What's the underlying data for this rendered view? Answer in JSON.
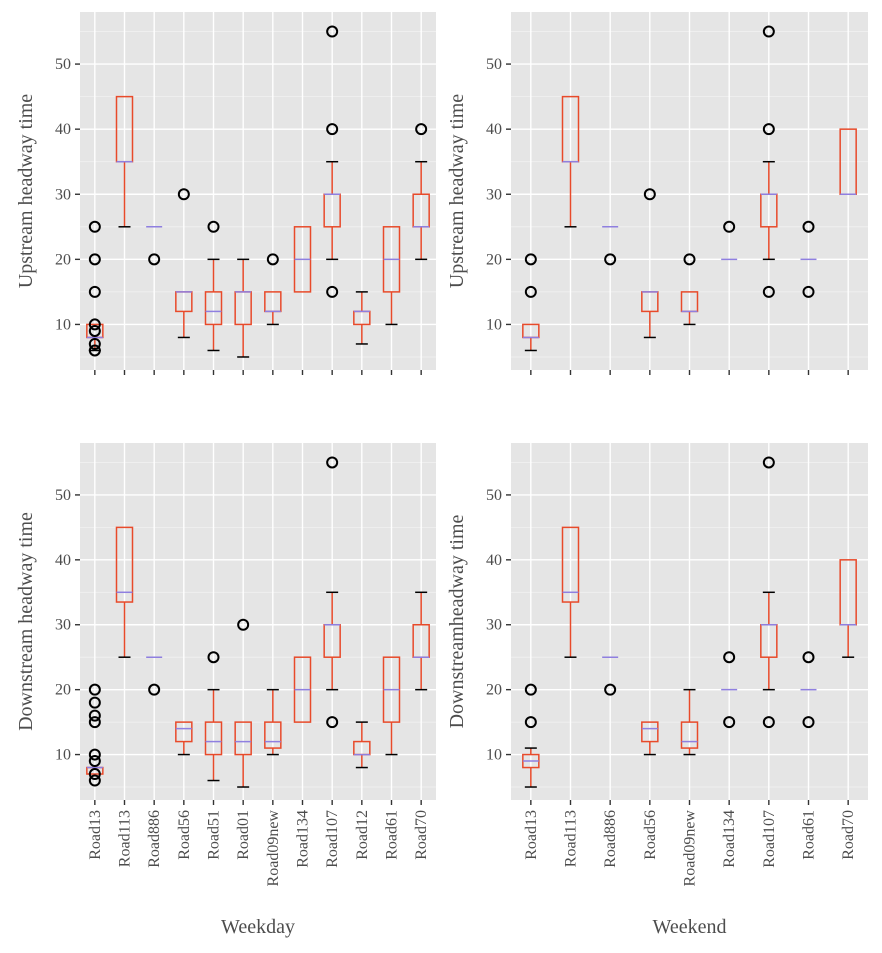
{
  "chart_data": [
    {
      "type": "boxplot",
      "panel": "top-left",
      "ylabel": "Upstream headway time",
      "xlabel": "",
      "yticks": [
        10,
        20,
        30,
        40,
        50
      ],
      "ylim": [
        3,
        58
      ],
      "categories": [
        "Road13",
        "Road113",
        "Road886",
        "Road56",
        "Road51",
        "Road01",
        "Road09new",
        "Road134",
        "Road107",
        "Road12",
        "Road61",
        "Road70"
      ],
      "show_category_labels": false,
      "boxes": [
        {
          "q1": 8,
          "median": 8,
          "q3": 10,
          "whislo": 6,
          "whishi": 10,
          "fliers": [
            6,
            7,
            9,
            10,
            15,
            20,
            25
          ]
        },
        {
          "q1": 35,
          "median": 35,
          "q3": 45,
          "whislo": 25,
          "whishi": 45,
          "fliers": []
        },
        {
          "q1": 25,
          "median": 25,
          "q3": 25,
          "whislo": 25,
          "whishi": 25,
          "fliers": [
            20
          ]
        },
        {
          "q1": 12,
          "median": 15,
          "q3": 15,
          "whislo": 8,
          "whishi": 15,
          "fliers": [
            30
          ]
        },
        {
          "q1": 10,
          "median": 12,
          "q3": 15,
          "whislo": 6,
          "whishi": 20,
          "fliers": [
            25
          ]
        },
        {
          "q1": 10,
          "median": 15,
          "q3": 15,
          "whislo": 5,
          "whishi": 20,
          "fliers": []
        },
        {
          "q1": 12,
          "median": 12,
          "q3": 15,
          "whislo": 10,
          "whishi": 15,
          "fliers": [
            20
          ]
        },
        {
          "q1": 15,
          "median": 20,
          "q3": 25,
          "whislo": 15,
          "whishi": 25,
          "fliers": []
        },
        {
          "q1": 25,
          "median": 30,
          "q3": 30,
          "whislo": 20,
          "whishi": 35,
          "fliers": [
            15,
            40,
            55
          ]
        },
        {
          "q1": 10,
          "median": 12,
          "q3": 12,
          "whislo": 7,
          "whishi": 15,
          "fliers": []
        },
        {
          "q1": 15,
          "median": 20,
          "q3": 25,
          "whislo": 10,
          "whishi": 25,
          "fliers": []
        },
        {
          "q1": 25,
          "median": 25,
          "q3": 30,
          "whislo": 20,
          "whishi": 35,
          "fliers": [
            40
          ]
        }
      ]
    },
    {
      "type": "boxplot",
      "panel": "top-right",
      "ylabel": "Upstream headway time",
      "xlabel": "",
      "yticks": [
        10,
        20,
        30,
        40,
        50
      ],
      "ylim": [
        3,
        58
      ],
      "categories": [
        "Road13",
        "Road113",
        "Road886",
        "Road56",
        "Road09new",
        "Road134",
        "Road107",
        "Road61",
        "Road70"
      ],
      "show_category_labels": false,
      "boxes": [
        {
          "q1": 8,
          "median": 8,
          "q3": 10,
          "whislo": 6,
          "whishi": 10,
          "fliers": [
            15,
            20
          ]
        },
        {
          "q1": 35,
          "median": 35,
          "q3": 45,
          "whislo": 25,
          "whishi": 45,
          "fliers": []
        },
        {
          "q1": 25,
          "median": 25,
          "q3": 25,
          "whislo": 25,
          "whishi": 25,
          "fliers": [
            20
          ]
        },
        {
          "q1": 12,
          "median": 15,
          "q3": 15,
          "whislo": 8,
          "whishi": 15,
          "fliers": [
            30
          ]
        },
        {
          "q1": 12,
          "median": 12,
          "q3": 15,
          "whislo": 10,
          "whishi": 15,
          "fliers": [
            20
          ]
        },
        {
          "q1": 20,
          "median": 20,
          "q3": 20,
          "whislo": 20,
          "whishi": 20,
          "fliers": [
            25
          ]
        },
        {
          "q1": 25,
          "median": 30,
          "q3": 30,
          "whislo": 20,
          "whishi": 35,
          "fliers": [
            15,
            40,
            55
          ]
        },
        {
          "q1": 20,
          "median": 20,
          "q3": 20,
          "whislo": 20,
          "whishi": 20,
          "fliers": [
            15,
            25
          ]
        },
        {
          "q1": 30,
          "median": 30,
          "q3": 40,
          "whislo": 30,
          "whishi": 40,
          "fliers": []
        }
      ]
    },
    {
      "type": "boxplot",
      "panel": "bottom-left",
      "ylabel": "Downstream headway time",
      "xlabel": "Weekday",
      "yticks": [
        10,
        20,
        30,
        40,
        50
      ],
      "ylim": [
        3,
        58
      ],
      "categories": [
        "Road13",
        "Road113",
        "Road886",
        "Road56",
        "Road51",
        "Road01",
        "Road09new",
        "Road134",
        "Road107",
        "Road12",
        "Road61",
        "Road70"
      ],
      "show_category_labels": true,
      "boxes": [
        {
          "q1": 7,
          "median": 8,
          "q3": 8,
          "whislo": 7,
          "whishi": 8,
          "fliers": [
            6,
            7,
            9,
            10,
            15,
            16,
            18,
            20
          ]
        },
        {
          "q1": 33.5,
          "median": 35,
          "q3": 45,
          "whislo": 25,
          "whishi": 45,
          "fliers": []
        },
        {
          "q1": 25,
          "median": 25,
          "q3": 25,
          "whislo": 25,
          "whishi": 25,
          "fliers": [
            20
          ]
        },
        {
          "q1": 12,
          "median": 14,
          "q3": 15,
          "whislo": 10,
          "whishi": 15,
          "fliers": []
        },
        {
          "q1": 10,
          "median": 12,
          "q3": 15,
          "whislo": 6,
          "whishi": 20,
          "fliers": [
            25
          ]
        },
        {
          "q1": 10,
          "median": 12,
          "q3": 15,
          "whislo": 5,
          "whishi": 15,
          "fliers": [
            30
          ]
        },
        {
          "q1": 11,
          "median": 12,
          "q3": 15,
          "whislo": 10,
          "whishi": 20,
          "fliers": []
        },
        {
          "q1": 15,
          "median": 20,
          "q3": 25,
          "whislo": 15,
          "whishi": 25,
          "fliers": []
        },
        {
          "q1": 25,
          "median": 30,
          "q3": 30,
          "whislo": 20,
          "whishi": 35,
          "fliers": [
            15,
            55
          ]
        },
        {
          "q1": 10,
          "median": 10,
          "q3": 12,
          "whislo": 8,
          "whishi": 15,
          "fliers": []
        },
        {
          "q1": 15,
          "median": 20,
          "q3": 25,
          "whislo": 10,
          "whishi": 25,
          "fliers": []
        },
        {
          "q1": 25,
          "median": 25,
          "q3": 30,
          "whislo": 20,
          "whishi": 35,
          "fliers": []
        }
      ]
    },
    {
      "type": "boxplot",
      "panel": "bottom-right",
      "ylabel": "Downstreamheadway time",
      "xlabel": "Weekend",
      "yticks": [
        10,
        20,
        30,
        40,
        50
      ],
      "ylim": [
        3,
        58
      ],
      "categories": [
        "Road13",
        "Road113",
        "Road886",
        "Road56",
        "Road09new",
        "Road134",
        "Road107",
        "Road61",
        "Road70"
      ],
      "show_category_labels": true,
      "boxes": [
        {
          "q1": 8,
          "median": 9,
          "q3": 10,
          "whislo": 5,
          "whishi": 11,
          "fliers": [
            15,
            20
          ]
        },
        {
          "q1": 33.5,
          "median": 35,
          "q3": 45,
          "whislo": 25,
          "whishi": 45,
          "fliers": []
        },
        {
          "q1": 25,
          "median": 25,
          "q3": 25,
          "whislo": 25,
          "whishi": 25,
          "fliers": [
            20
          ]
        },
        {
          "q1": 12,
          "median": 14,
          "q3": 15,
          "whislo": 10,
          "whishi": 15,
          "fliers": []
        },
        {
          "q1": 11,
          "median": 12,
          "q3": 15,
          "whislo": 10,
          "whishi": 20,
          "fliers": []
        },
        {
          "q1": 20,
          "median": 20,
          "q3": 20,
          "whislo": 20,
          "whishi": 20,
          "fliers": [
            15,
            25
          ]
        },
        {
          "q1": 25,
          "median": 30,
          "q3": 30,
          "whislo": 20,
          "whishi": 35,
          "fliers": [
            15,
            55
          ]
        },
        {
          "q1": 20,
          "median": 20,
          "q3": 20,
          "whislo": 20,
          "whishi": 20,
          "fliers": [
            15,
            25
          ]
        },
        {
          "q1": 30,
          "median": 30,
          "q3": 40,
          "whislo": 25,
          "whishi": 40,
          "fliers": []
        }
      ]
    }
  ],
  "colors": {
    "panel_bg": "#e5e5e5",
    "grid": "#ffffff",
    "box": "#e84a2a",
    "median": "#8f7fe0",
    "cap": "#000000",
    "flier": "#000000",
    "text": "#4d4d4d"
  }
}
